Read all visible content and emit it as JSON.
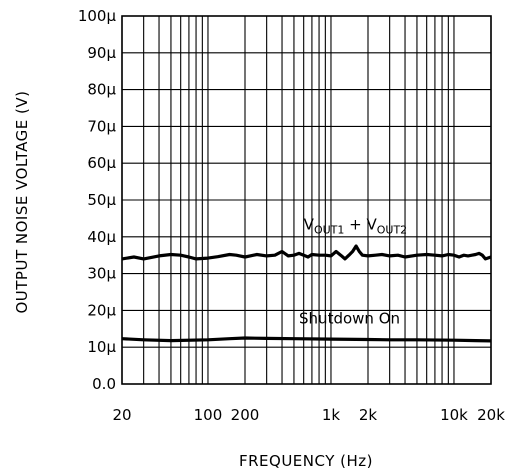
{
  "chart_data": {
    "type": "line",
    "xlabel": "FREQUENCY (Hz)",
    "ylabel": "OUTPUT NOISE VOLTAGE (V)",
    "xscale": "log",
    "xlim": [
      20,
      20000
    ],
    "ylim": [
      0,
      0.0001
    ],
    "grid": true,
    "x_ticks": [
      {
        "value": 20,
        "label": "20"
      },
      {
        "value": 100,
        "label": "100"
      },
      {
        "value": 200,
        "label": "200"
      },
      {
        "value": 1000,
        "label": "1k"
      },
      {
        "value": 2000,
        "label": "2k"
      },
      {
        "value": 10000,
        "label": "10k"
      },
      {
        "value": 20000,
        "label": "20k"
      }
    ],
    "y_ticks": [
      {
        "value": 0,
        "label": "0.0"
      },
      {
        "value": 1e-05,
        "label": "10µ"
      },
      {
        "value": 2e-05,
        "label": "20µ"
      },
      {
        "value": 3e-05,
        "label": "30µ"
      },
      {
        "value": 4e-05,
        "label": "40µ"
      },
      {
        "value": 5e-05,
        "label": "50µ"
      },
      {
        "value": 6e-05,
        "label": "60µ"
      },
      {
        "value": 7e-05,
        "label": "70µ"
      },
      {
        "value": 8e-05,
        "label": "80µ"
      },
      {
        "value": 9e-05,
        "label": "90µ"
      },
      {
        "value": 0.0001,
        "label": "100µ"
      }
    ],
    "series": [
      {
        "x": [
          20,
          25,
          30,
          40,
          50,
          60,
          70,
          80,
          100,
          120,
          150,
          170,
          200,
          250,
          300,
          350,
          400,
          450,
          500,
          550,
          600,
          650,
          700,
          800,
          900,
          1000,
          1100,
          1200,
          1300,
          1400,
          1500,
          1600,
          1700,
          1800,
          2000,
          2300,
          2600,
          3000,
          3500,
          4000,
          5000,
          6000,
          7000,
          8000,
          9000,
          10000,
          11000,
          12000,
          13000,
          14000,
          15000,
          16000,
          17000,
          18000,
          20000
        ],
        "y": [
          3.4e-05,
          3.45e-05,
          3.4e-05,
          3.48e-05,
          3.52e-05,
          3.5e-05,
          3.45e-05,
          3.4e-05,
          3.42e-05,
          3.46e-05,
          3.52e-05,
          3.5e-05,
          3.45e-05,
          3.52e-05,
          3.48e-05,
          3.5e-05,
          3.6e-05,
          3.48e-05,
          3.5e-05,
          3.55e-05,
          3.5e-05,
          3.45e-05,
          3.52e-05,
          3.5e-05,
          3.5e-05,
          3.48e-05,
          3.6e-05,
          3.5e-05,
          3.4e-05,
          3.5e-05,
          3.6e-05,
          3.75e-05,
          3.6e-05,
          3.5e-05,
          3.48e-05,
          3.5e-05,
          3.52e-05,
          3.48e-05,
          3.5e-05,
          3.45e-05,
          3.5e-05,
          3.52e-05,
          3.5e-05,
          3.48e-05,
          3.52e-05,
          3.5e-05,
          3.45e-05,
          3.5e-05,
          3.48e-05,
          3.5e-05,
          3.52e-05,
          3.55e-05,
          3.5e-05,
          3.4e-05,
          3.45e-05
        ]
      },
      {
        "x": [
          20,
          30,
          50,
          100,
          150,
          200,
          300,
          500,
          1000,
          2000,
          3000,
          5000,
          10000,
          15000,
          20000
        ],
        "y": [
          1.23e-05,
          1.2e-05,
          1.18e-05,
          1.2e-05,
          1.23e-05,
          1.25e-05,
          1.24e-05,
          1.23e-05,
          1.22e-05,
          1.21e-05,
          1.2e-05,
          1.2e-05,
          1.19e-05,
          1.18e-05,
          1.17e-05
        ]
      }
    ],
    "annotations": [
      {
        "main": "V",
        "sub": "OUT1",
        "mid": " + V",
        "sub2": "OUT2",
        "x": 600,
        "y": 4.2e-05
      },
      {
        "text": "Shutdown On",
        "x": 550,
        "y": 1.65e-05
      }
    ]
  }
}
